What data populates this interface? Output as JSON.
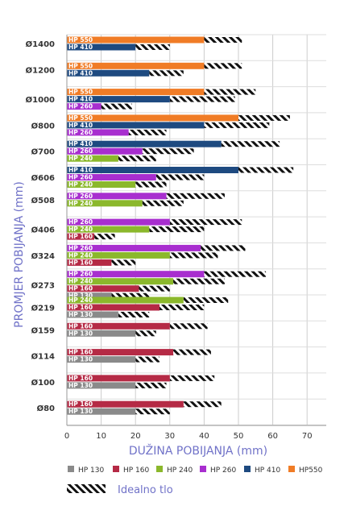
{
  "chart_data": {
    "type": "bar",
    "orientation": "horizontal",
    "xlabel": "DUŽINA POBIJANJA (mm)",
    "ylabel": "PROMJER POBIJANJA (mm)",
    "xlim": [
      0,
      75
    ],
    "xticks": [
      "0",
      "10",
      "20",
      "30",
      "40",
      "50",
      "60",
      "70"
    ],
    "grid": true,
    "legend_position": "bottom",
    "ideal_label": "Idealno tlo",
    "series_legend": [
      {
        "name": "HP 130",
        "color": "#8a8a8a"
      },
      {
        "name": "HP 160",
        "color": "#b52a45"
      },
      {
        "name": "HP 240",
        "color": "#8bb82c"
      },
      {
        "name": "HP 260",
        "color": "#a82ecf"
      },
      {
        "name": "HP 410",
        "color": "#1e4a80"
      },
      {
        "name": "HP550",
        "color": "#f07c26"
      }
    ],
    "categories": [
      {
        "label": "Ø1400",
        "bars": [
          {
            "series": "HP 550",
            "value": 40,
            "ideal": 51
          },
          {
            "series": "HP 410",
            "value": 20,
            "ideal": 30
          }
        ]
      },
      {
        "label": "Ø1200",
        "bars": [
          {
            "series": "HP 550",
            "value": 40,
            "ideal": 51
          },
          {
            "series": "HP 410",
            "value": 24,
            "ideal": 34
          }
        ]
      },
      {
        "label": "Ø1000",
        "bars": [
          {
            "series": "HP 550",
            "value": 40,
            "ideal": 55
          },
          {
            "series": "HP 410",
            "value": 30,
            "ideal": 49
          },
          {
            "series": "HP 260",
            "value": 10,
            "ideal": 19
          }
        ]
      },
      {
        "label": "Ø800",
        "bars": [
          {
            "series": "HP 550",
            "value": 50,
            "ideal": 65
          },
          {
            "series": "HP 410",
            "value": 40,
            "ideal": 59
          },
          {
            "series": "HP 260",
            "value": 18,
            "ideal": 29
          }
        ]
      },
      {
        "label": "Ø700",
        "bars": [
          {
            "series": "HP 410",
            "value": 45,
            "ideal": 62
          },
          {
            "series": "HP 260",
            "value": 22,
            "ideal": 37
          },
          {
            "series": "HP 240",
            "value": 15,
            "ideal": 26
          }
        ]
      },
      {
        "label": "Ø606",
        "bars": [
          {
            "series": "HP 410",
            "value": 50,
            "ideal": 66
          },
          {
            "series": "HP 260",
            "value": 26,
            "ideal": 40
          },
          {
            "series": "HP 240",
            "value": 20,
            "ideal": 29
          }
        ]
      },
      {
        "label": "Ø508",
        "bars": [
          {
            "series": "HP 260",
            "value": 29,
            "ideal": 46
          },
          {
            "series": "HP 240",
            "value": 22,
            "ideal": 34
          }
        ]
      },
      {
        "label": "Ø406",
        "bars": [
          {
            "series": "HP 260",
            "value": 30,
            "ideal": 51
          },
          {
            "series": "HP 240",
            "value": 24,
            "ideal": 40
          },
          {
            "series": "HP 160",
            "value": 8,
            "ideal": 14
          }
        ]
      },
      {
        "label": "Ø324",
        "bars": [
          {
            "series": "HP 260",
            "value": 39,
            "ideal": 52
          },
          {
            "series": "HP 240",
            "value": 30,
            "ideal": 44
          },
          {
            "series": "HP 160",
            "value": 13,
            "ideal": 20
          }
        ]
      },
      {
        "label": "Ø273",
        "bars": [
          {
            "series": "HP 260",
            "value": 40,
            "ideal": 58
          },
          {
            "series": "HP 240",
            "value": 31,
            "ideal": 46
          },
          {
            "series": "HP 160",
            "value": 21,
            "ideal": 30
          },
          {
            "series": "HP 130",
            "value": 13,
            "ideal": 24
          }
        ]
      },
      {
        "label": "Ø219",
        "bars": [
          {
            "series": "HP 240",
            "value": 34,
            "ideal": 47
          },
          {
            "series": "HP 160",
            "value": 27,
            "ideal": 40
          },
          {
            "series": "HP 130",
            "value": 15,
            "ideal": 24
          }
        ]
      },
      {
        "label": "Ø159",
        "bars": [
          {
            "series": "HP 160",
            "value": 30,
            "ideal": 41
          },
          {
            "series": "HP 130",
            "value": 20,
            "ideal": 26
          }
        ]
      },
      {
        "label": "Ø114",
        "bars": [
          {
            "series": "HP 160",
            "value": 31,
            "ideal": 42
          },
          {
            "series": "HP 130",
            "value": 20,
            "ideal": 27
          }
        ]
      },
      {
        "label": "Ø100",
        "bars": [
          {
            "series": "HP 160",
            "value": 30,
            "ideal": 43
          },
          {
            "series": "HP 130",
            "value": 20,
            "ideal": 29
          }
        ]
      },
      {
        "label": "Ø80",
        "bars": [
          {
            "series": "HP 160",
            "value": 34,
            "ideal": 45
          },
          {
            "series": "HP 130",
            "value": 20,
            "ideal": 30
          }
        ]
      }
    ]
  }
}
